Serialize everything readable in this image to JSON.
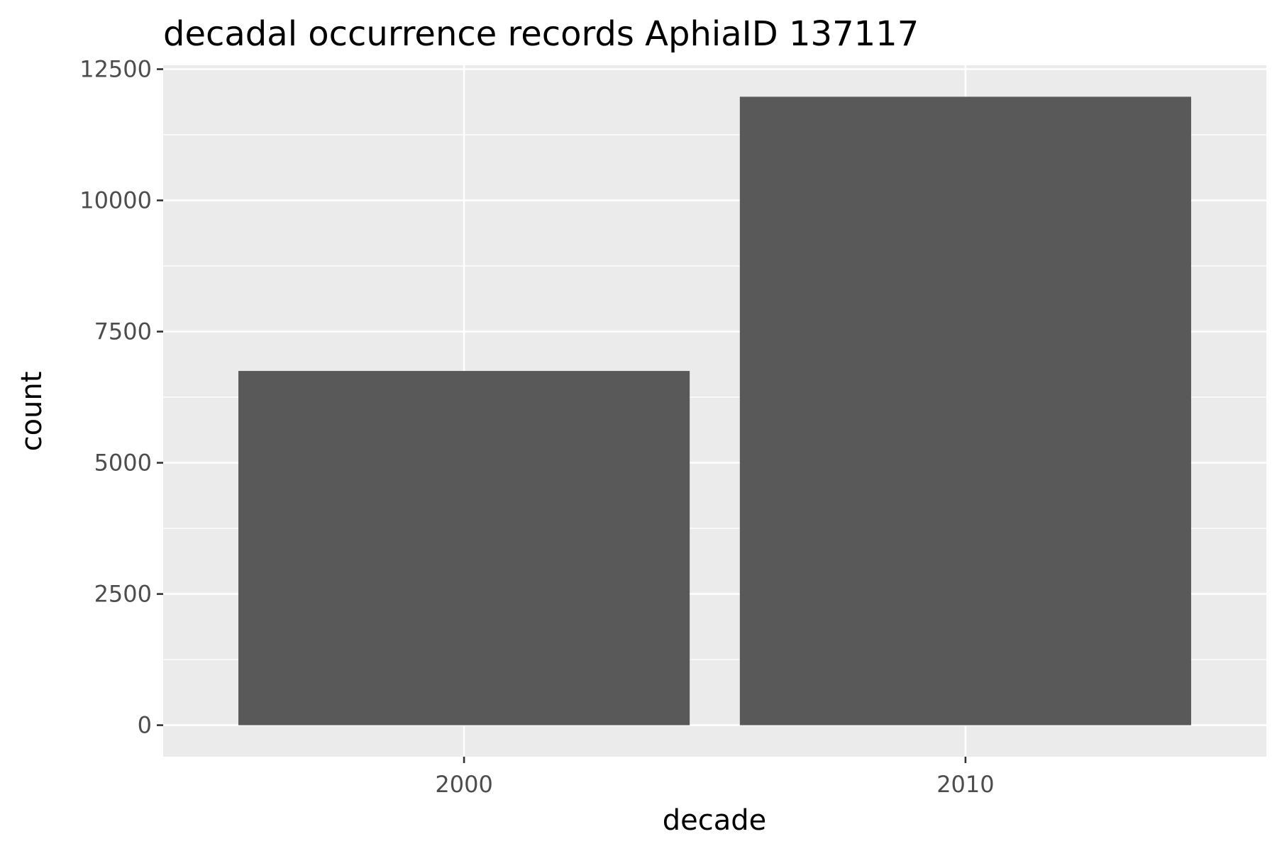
{
  "chart_data": {
    "type": "bar",
    "title": "decadal occurrence records AphiaID 137117",
    "xlabel": "decade",
    "ylabel": "count",
    "categories": [
      "2000",
      "2010"
    ],
    "values": [
      6750,
      11975
    ],
    "ylim": [
      -600,
      12575
    ],
    "yticks": [
      0,
      2500,
      5000,
      7500,
      10000,
      12500
    ],
    "ytick_labels": [
      "0",
      "2500",
      "5000",
      "7500",
      "10000",
      "12500"
    ],
    "grid": true,
    "legend": "none",
    "colors": {
      "bar": "#595959",
      "panel_background": "#ebebeb",
      "gridline": "#ffffff"
    }
  }
}
